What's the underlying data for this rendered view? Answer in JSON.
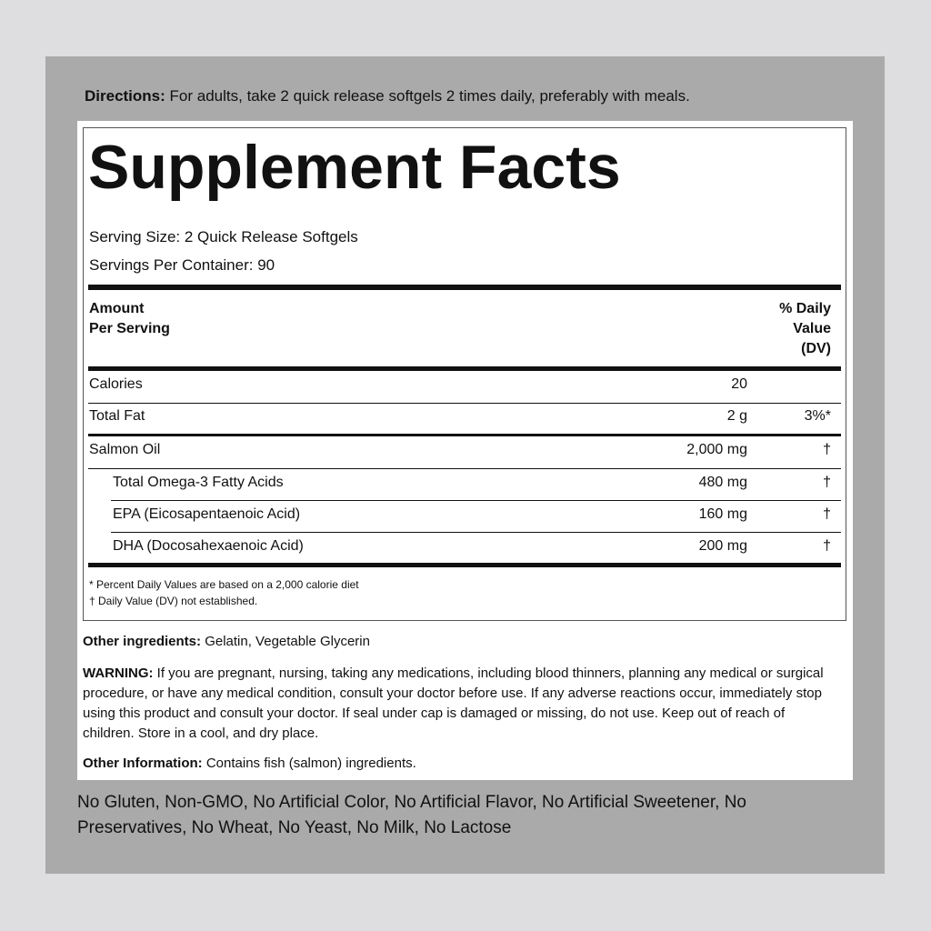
{
  "directions": {
    "label": "Directions:",
    "text": "For adults, take 2 quick release softgels 2 times daily, preferably with meals."
  },
  "facts": {
    "title": "Supplement Facts",
    "serving_size": "Serving Size: 2 Quick Release Softgels",
    "servings_per_container": "Servings Per Container: 90",
    "header": {
      "amount": "Amount",
      "per_serving": "Per Serving",
      "dv_line1": "% Daily",
      "dv_line2": "Value",
      "dv_line3": "(DV)"
    },
    "rows": [
      {
        "name": "Calories",
        "amount": "20"
      },
      {
        "name": "Total Fat",
        "amount": "2 g",
        "dv": "3%*"
      },
      {
        "name": "Salmon Oil",
        "amount": "2,000 mg",
        "dv": "†"
      },
      {
        "name": "Total Omega-3 Fatty Acids",
        "amount": "480 mg",
        "dv": "†"
      },
      {
        "name": "EPA (Eicosapentaenoic Acid)",
        "amount": "160 mg",
        "dv": "†"
      },
      {
        "name": "DHA (Docosahexaenoic Acid)",
        "amount": "200 mg",
        "dv": "†"
      }
    ],
    "footnotes": [
      "* Percent Daily Values are based on a 2,000 calorie diet",
      "† Daily Value (DV) not established."
    ]
  },
  "other_ingredients": {
    "label": "Other ingredients:",
    "text": "Gelatin, Vegetable Glycerin"
  },
  "warning": {
    "label": "WARNING:",
    "text": "If you are pregnant, nursing, taking any medications, including blood thinners, planning any medical or surgical procedure, or have any medical condition, consult your doctor before use. If any adverse reactions occur, immediately stop using this product and consult your doctor. If seal under cap is damaged or missing, do not use. Keep out of reach of children. Store in a cool, and dry place."
  },
  "other_information": {
    "label": "Other Information:",
    "text": "Contains fish (salmon) ingredients."
  },
  "claims": "No Gluten, Non-GMO, No Artificial Color, No Artificial Flavor, No Artificial Sweetener, No Preservatives, No Wheat, No Yeast, No Milk, No Lactose"
}
